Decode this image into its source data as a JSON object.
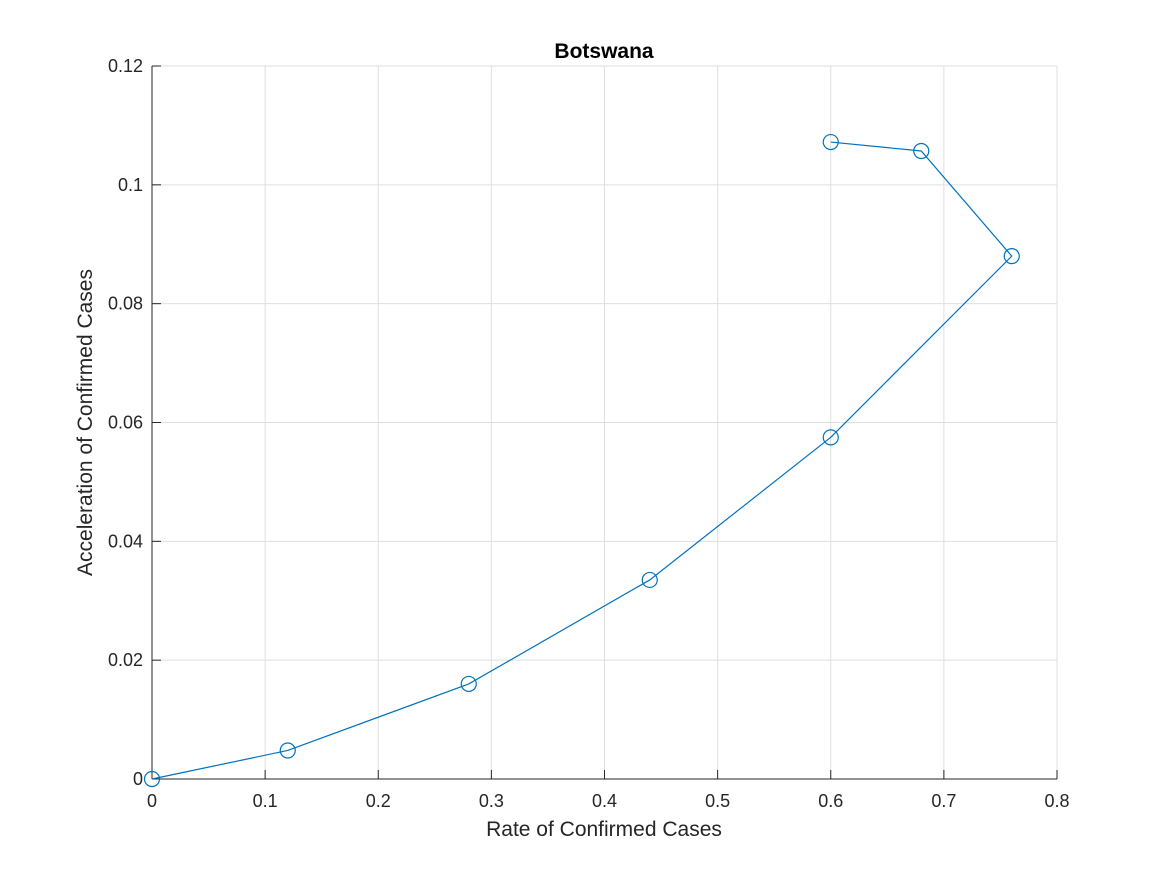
{
  "chart_data": {
    "type": "line",
    "title": "Botswana",
    "xlabel": "Rate of Confirmed Cases",
    "ylabel": "Acceleration of Confirmed Cases",
    "xlim": [
      0,
      0.8
    ],
    "ylim": [
      0,
      0.12
    ],
    "xticks": [
      0,
      0.1,
      0.2,
      0.3,
      0.4,
      0.5,
      0.6,
      0.7,
      0.8
    ],
    "yticks": [
      0,
      0.02,
      0.04,
      0.06,
      0.08,
      0.1,
      0.12
    ],
    "xtick_labels": [
      "0",
      "0.1",
      "0.2",
      "0.3",
      "0.4",
      "0.5",
      "0.6",
      "0.7",
      "0.8"
    ],
    "ytick_labels": [
      "0",
      "0.02",
      "0.04",
      "0.06",
      "0.08",
      "0.1",
      "0.12"
    ],
    "grid": true,
    "marker": "circle",
    "series": [
      {
        "color": "#0072bd",
        "x": [
          0,
          0.12,
          0.28,
          0.44,
          0.6,
          0.76,
          0.68,
          0.6
        ],
        "y": [
          0,
          0.0048,
          0.016,
          0.0335,
          0.0575,
          0.088,
          0.1057,
          0.1072
        ]
      }
    ]
  }
}
